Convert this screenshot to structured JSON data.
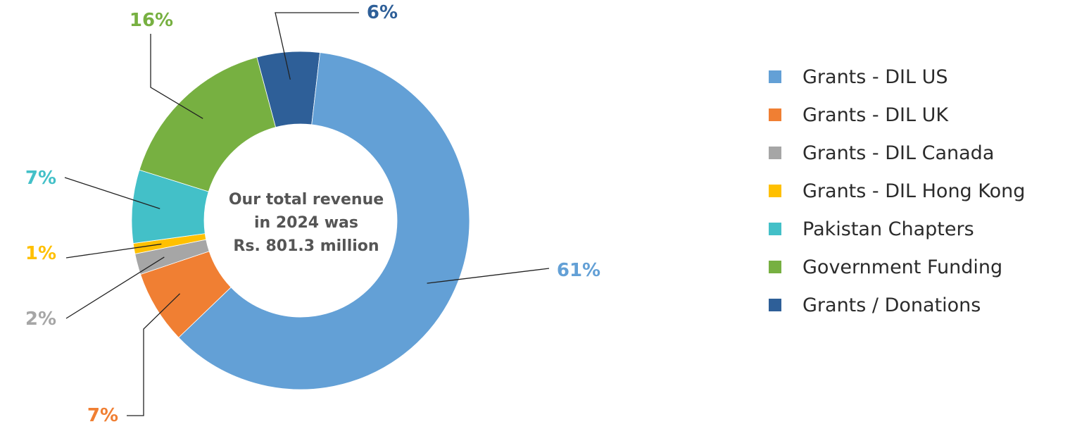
{
  "chart_data": {
    "type": "pie",
    "variant": "donut",
    "center_text": [
      "Our total revenue",
      "in 2024 was",
      "Rs. 801.3 million"
    ],
    "legend_position": "right",
    "slices": [
      {
        "label": "Grants / Donations",
        "value": 6,
        "display": "6%",
        "color": "#2e5f98"
      },
      {
        "label": "Grants - DIL US",
        "value": 61,
        "display": "61%",
        "color": "#63a0d6"
      },
      {
        "label": "Grants - DIL UK",
        "value": 7,
        "display": "7%",
        "color": "#f07f33"
      },
      {
        "label": "Grants - DIL Canada",
        "value": 2,
        "display": "2%",
        "color": "#a6a6a6"
      },
      {
        "label": "Grants - DIL Hong Kong",
        "value": 1,
        "display": "1%",
        "color": "#ffc000"
      },
      {
        "label": "Pakistan Chapters",
        "value": 7,
        "display": "7%",
        "color": "#43c0c8"
      },
      {
        "label": "Government Funding",
        "value": 16,
        "display": "16%",
        "color": "#77b041"
      }
    ]
  },
  "legend": [
    {
      "label": "Grants - DIL US",
      "color": "#63a0d6"
    },
    {
      "label": "Grants - DIL UK",
      "color": "#f07f33"
    },
    {
      "label": "Grants - DIL Canada",
      "color": "#a6a6a6"
    },
    {
      "label": "Grants - DIL Hong Kong",
      "color": "#ffc000"
    },
    {
      "label": "Pakistan Chapters",
      "color": "#43c0c8"
    },
    {
      "label": "Government Funding",
      "color": "#77b041"
    },
    {
      "label": "Grants / Donations",
      "color": "#2e5f98"
    }
  ]
}
